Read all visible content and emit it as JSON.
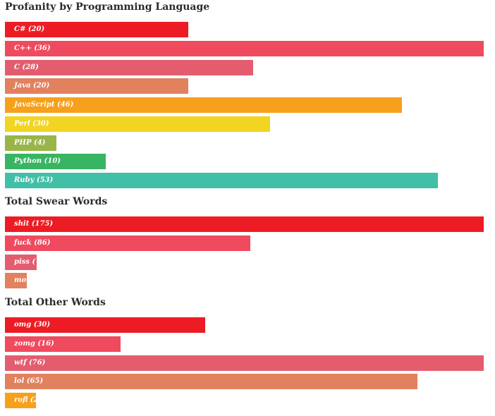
{
  "chart_data": [
    {
      "type": "bar",
      "orientation": "horizontal",
      "title": "Profanity by Programming Language",
      "categories": [
        "C#",
        "C++",
        "C",
        "Java",
        "JavaScript",
        "Perl",
        "PHP",
        "Python",
        "Ruby"
      ],
      "values": [
        20,
        36,
        28,
        20,
        46,
        30,
        4,
        10,
        53
      ],
      "labels": [
        "C# (20)",
        "C++ (36)",
        "C (28)",
        "Java (20)",
        "JavaScript (46)",
        "Perl (30)",
        "PHP (4)",
        "Python (10)",
        "Ruby (53)"
      ],
      "bar_values": [
        0.383,
        1.0,
        0.519,
        0.383,
        0.829,
        0.554,
        0.108,
        0.21,
        0.905
      ],
      "colors": [
        "#ed1c24",
        "#ef4a5e",
        "#e35d6e",
        "#e2815e",
        "#f7a01c",
        "#f2d522",
        "#99b54a",
        "#37b562",
        "#41bfa7"
      ]
    },
    {
      "type": "bar",
      "orientation": "horizontal",
      "title": "Total Swear Words",
      "categories": [
        "shit",
        "fuck",
        "piss",
        "mo"
      ],
      "values": [
        175,
        86,
        null,
        null
      ],
      "labels": [
        "shit (175)",
        "fuck (86)",
        "piss (",
        "mo"
      ],
      "bar_values": [
        1.0,
        0.512,
        0.066,
        0.046
      ],
      "colors": [
        "#ed1c24",
        "#ef4a5e",
        "#e35d6e",
        "#e2815e"
      ]
    },
    {
      "type": "bar",
      "orientation": "horizontal",
      "title": "Total Other Words",
      "categories": [
        "omg",
        "zomg",
        "wtf",
        "lol",
        "rofl"
      ],
      "values": [
        30,
        16,
        76,
        65,
        null
      ],
      "labels": [
        "omg (30)",
        "zomg (16)",
        "wtf (76)",
        "lol (65)",
        "rofl (2"
      ],
      "bar_values": [
        0.418,
        0.241,
        1.0,
        0.862,
        0.065
      ],
      "colors": [
        "#ed1c24",
        "#ef4a5e",
        "#e35d6e",
        "#e2815e",
        "#f7a01c"
      ]
    }
  ]
}
